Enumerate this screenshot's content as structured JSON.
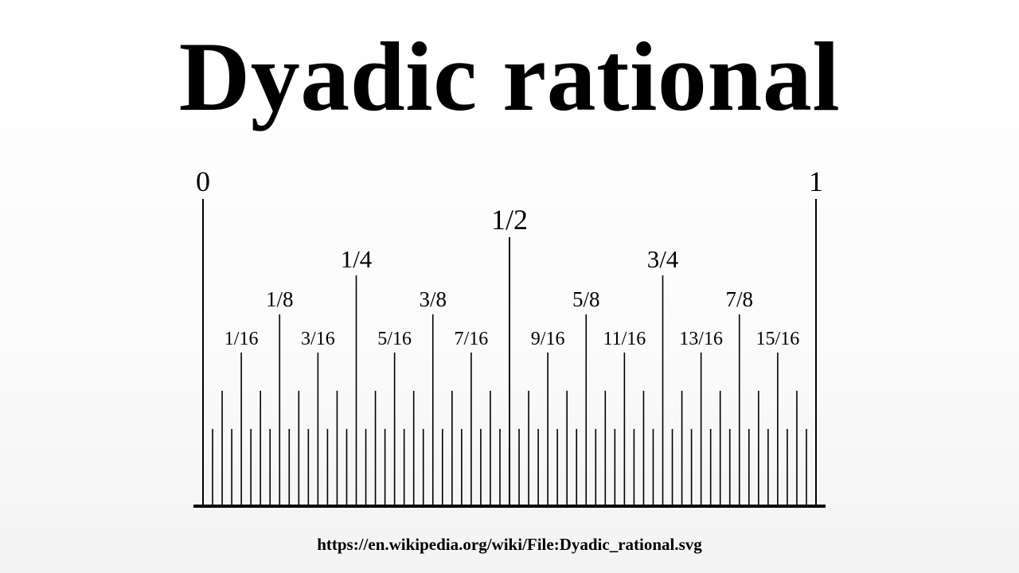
{
  "title": "Dyadic rational",
  "source_url": "https://en.wikipedia.org/wiki/File:Dyadic_rational.svg",
  "ruler": {
    "min": 0,
    "max": 1,
    "subdivision_denominator": 64,
    "labels": [
      {
        "text": "0",
        "value": 0,
        "level": 0
      },
      {
        "text": "1",
        "value": 1,
        "level": 0
      },
      {
        "text": "1/2",
        "value": 0.5,
        "level": 1
      },
      {
        "text": "1/4",
        "value": 0.25,
        "level": 2
      },
      {
        "text": "3/4",
        "value": 0.75,
        "level": 2
      },
      {
        "text": "1/8",
        "value": 0.125,
        "level": 3
      },
      {
        "text": "3/8",
        "value": 0.375,
        "level": 3
      },
      {
        "text": "5/8",
        "value": 0.625,
        "level": 3
      },
      {
        "text": "7/8",
        "value": 0.875,
        "level": 3
      },
      {
        "text": "1/16",
        "value": 0.0625,
        "level": 4
      },
      {
        "text": "3/16",
        "value": 0.1875,
        "level": 4
      },
      {
        "text": "5/16",
        "value": 0.3125,
        "level": 4
      },
      {
        "text": "7/16",
        "value": 0.4375,
        "level": 4
      },
      {
        "text": "9/16",
        "value": 0.5625,
        "level": 4
      },
      {
        "text": "11/16",
        "value": 0.6875,
        "level": 4
      },
      {
        "text": "13/16",
        "value": 0.8125,
        "level": 4
      },
      {
        "text": "15/16",
        "value": 0.9375,
        "level": 4
      }
    ]
  }
}
